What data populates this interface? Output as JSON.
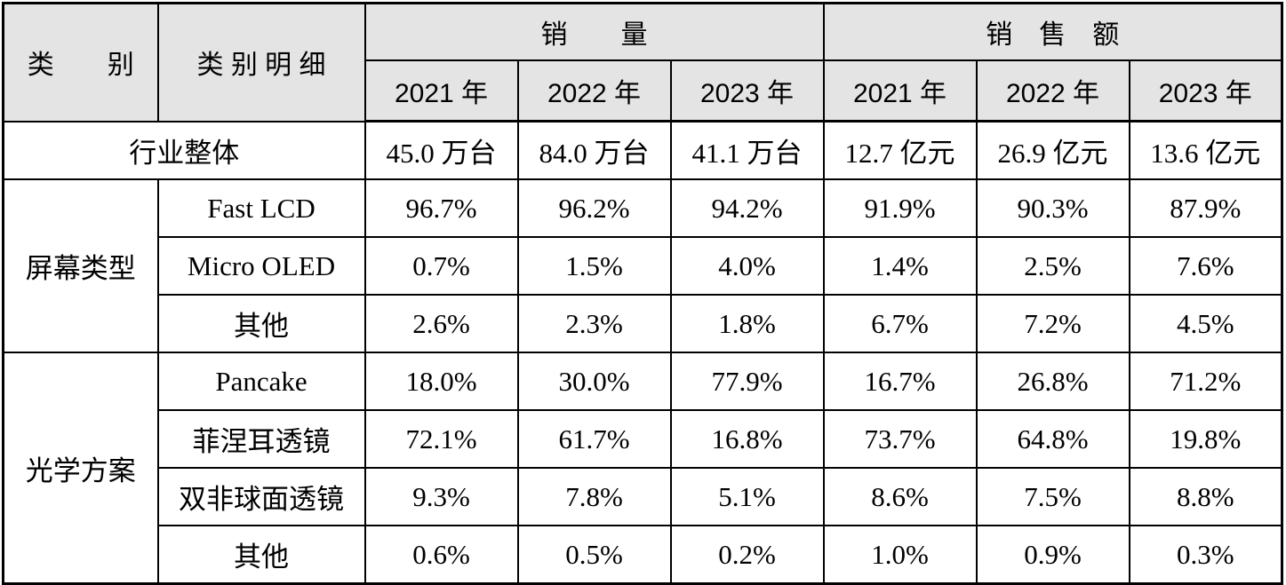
{
  "table": {
    "header": {
      "col_category": "类　　别",
      "col_detail": "类 别 明 细",
      "group_sales_volume": "销　　量",
      "group_sales_revenue": "销　售　额",
      "years": [
        "2021 年",
        "2022 年",
        "2023 年",
        "2021 年",
        "2022 年",
        "2023 年"
      ]
    },
    "overall_row": {
      "label": "行业整体",
      "values": [
        "45.0 万台",
        "84.0 万台",
        "41.1 万台",
        "12.7 亿元",
        "26.9 亿元",
        "13.6 亿元"
      ]
    },
    "groups": [
      {
        "label": "屏幕类型",
        "rows": [
          {
            "label": "Fast LCD",
            "values": [
              "96.7%",
              "96.2%",
              "94.2%",
              "91.9%",
              "90.3%",
              "87.9%"
            ]
          },
          {
            "label": "Micro OLED",
            "values": [
              "0.7%",
              "1.5%",
              "4.0%",
              "1.4%",
              "2.5%",
              "7.6%"
            ]
          },
          {
            "label": "其他",
            "values": [
              "2.6%",
              "2.3%",
              "1.8%",
              "6.7%",
              "7.2%",
              "4.5%"
            ]
          }
        ]
      },
      {
        "label": "光学方案",
        "rows": [
          {
            "label": "Pancake",
            "values": [
              "18.0%",
              "30.0%",
              "77.9%",
              "16.7%",
              "26.8%",
              "71.2%"
            ]
          },
          {
            "label": "菲涅耳透镜",
            "values": [
              "72.1%",
              "61.7%",
              "16.8%",
              "73.7%",
              "64.8%",
              "19.8%"
            ]
          },
          {
            "label": "双非球面透镜",
            "values": [
              "9.3%",
              "7.8%",
              "5.1%",
              "8.6%",
              "7.5%",
              "8.8%"
            ]
          },
          {
            "label": "其他",
            "values": [
              "0.6%",
              "0.5%",
              "0.2%",
              "1.0%",
              "0.9%",
              "0.3%"
            ]
          }
        ]
      }
    ],
    "colors": {
      "header_bg": "#e4e4e4",
      "border": "#000000",
      "body_bg": "#ffffff"
    }
  }
}
